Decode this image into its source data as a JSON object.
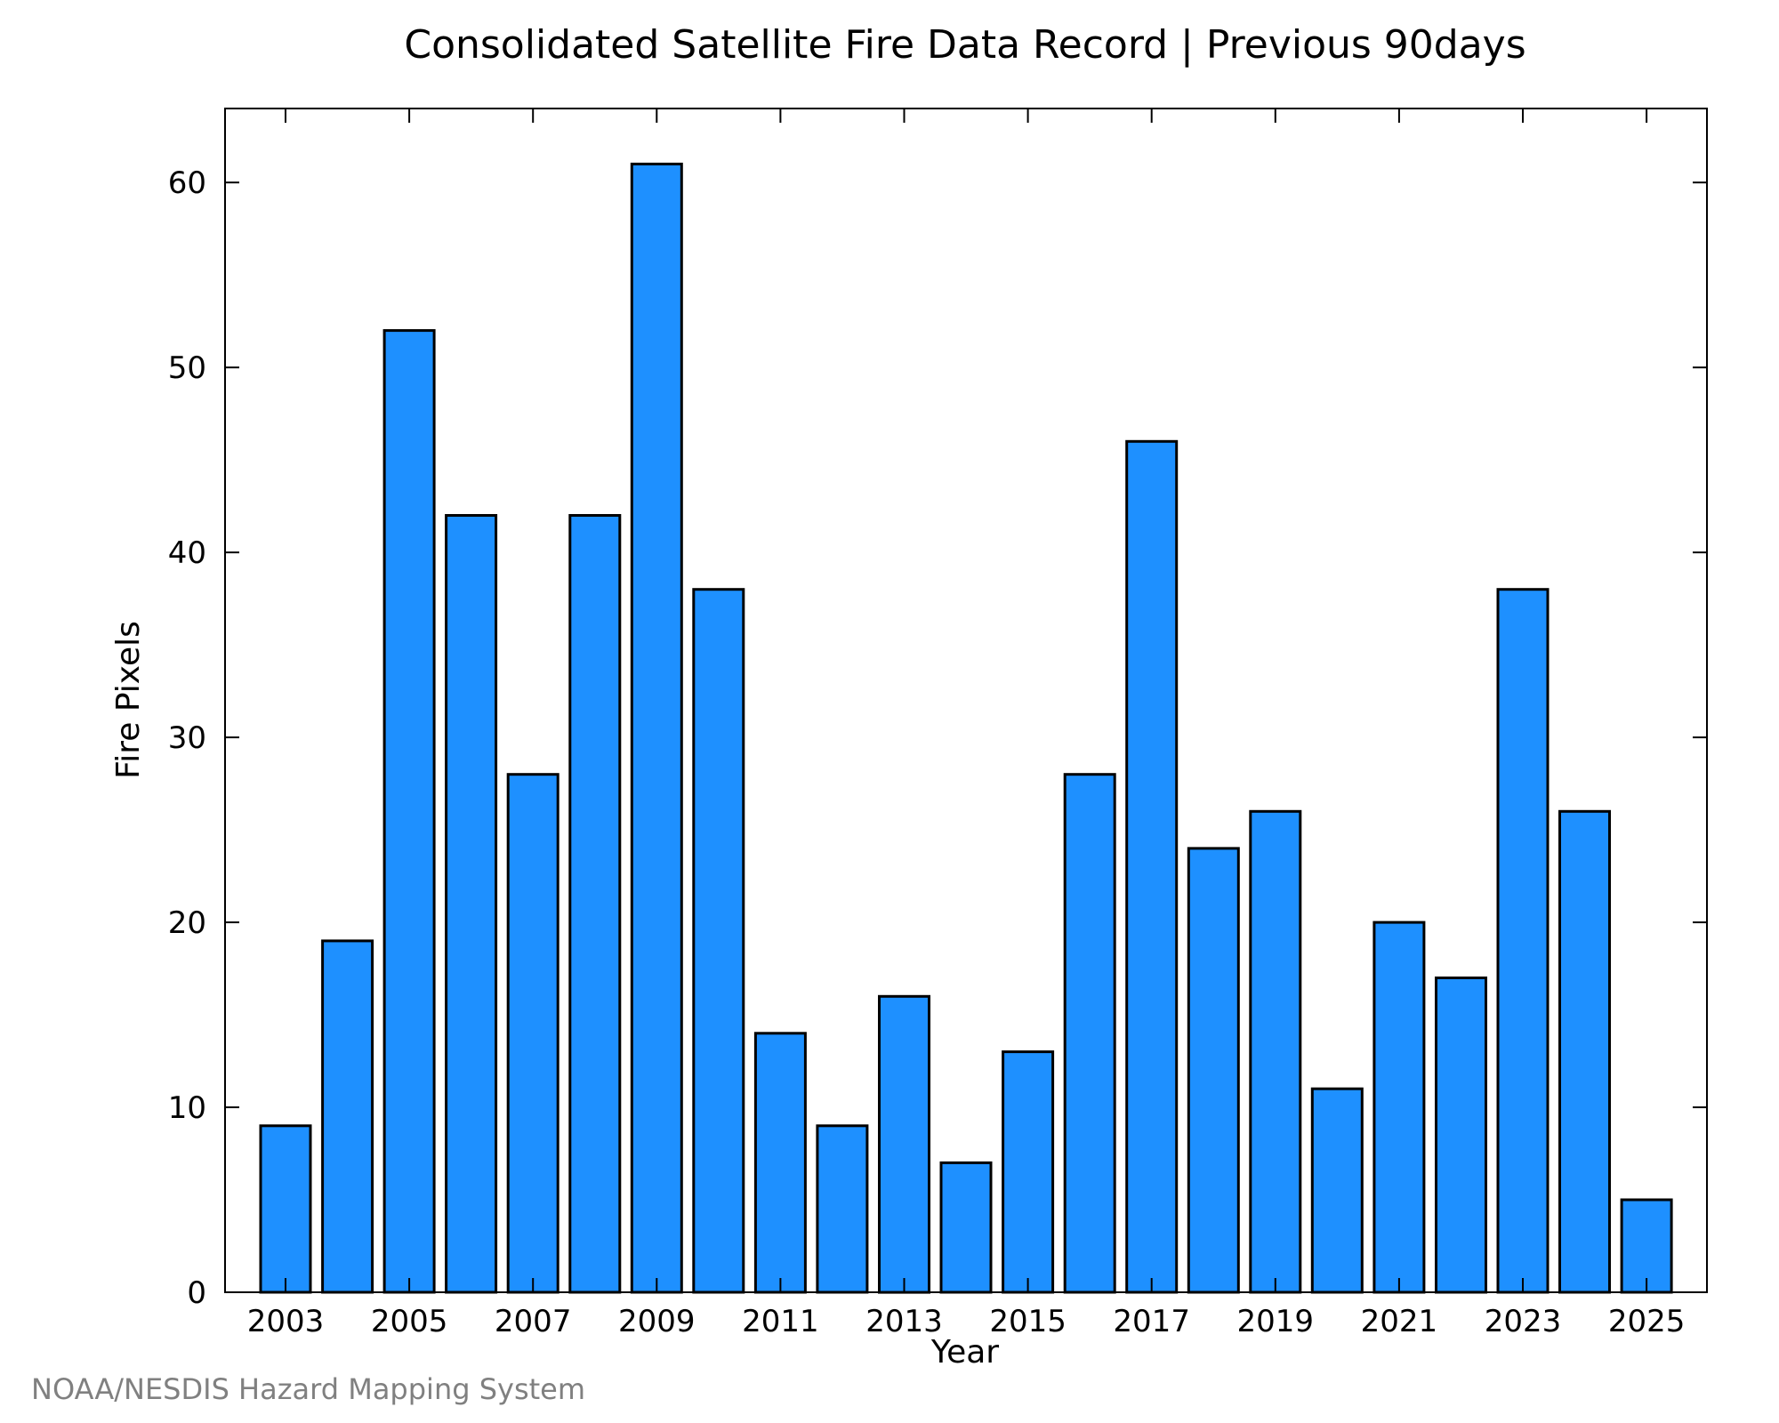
{
  "chart_data": {
    "type": "bar",
    "title": "Consolidated Satellite Fire Data Record | Previous 90days",
    "xlabel": "Year",
    "ylabel": "Fire Pixels",
    "categories": [
      "2003",
      "2004",
      "2005",
      "2006",
      "2007",
      "2008",
      "2009",
      "2010",
      "2011",
      "2012",
      "2013",
      "2014",
      "2015",
      "2016",
      "2017",
      "2018",
      "2019",
      "2020",
      "2021",
      "2022",
      "2023",
      "2024",
      "2025"
    ],
    "x_tick_labels": [
      "2003",
      "2005",
      "2007",
      "2009",
      "2011",
      "2013",
      "2015",
      "2017",
      "2019",
      "2021",
      "2023",
      "2025"
    ],
    "values": [
      9,
      19,
      52,
      42,
      28,
      42,
      61,
      38,
      14,
      9,
      16,
      7,
      13,
      28,
      46,
      24,
      26,
      11,
      20,
      17,
      38,
      26,
      5
    ],
    "ylim": [
      0,
      64
    ],
    "y_ticks": [
      0,
      10,
      20,
      30,
      40,
      50,
      60
    ],
    "grid": false,
    "colors": {
      "bar_fill": "#1e90ff",
      "bar_stroke": "#000000",
      "frame": "#000000"
    }
  },
  "footer": {
    "credit": "NOAA/NESDIS Hazard Mapping System"
  }
}
